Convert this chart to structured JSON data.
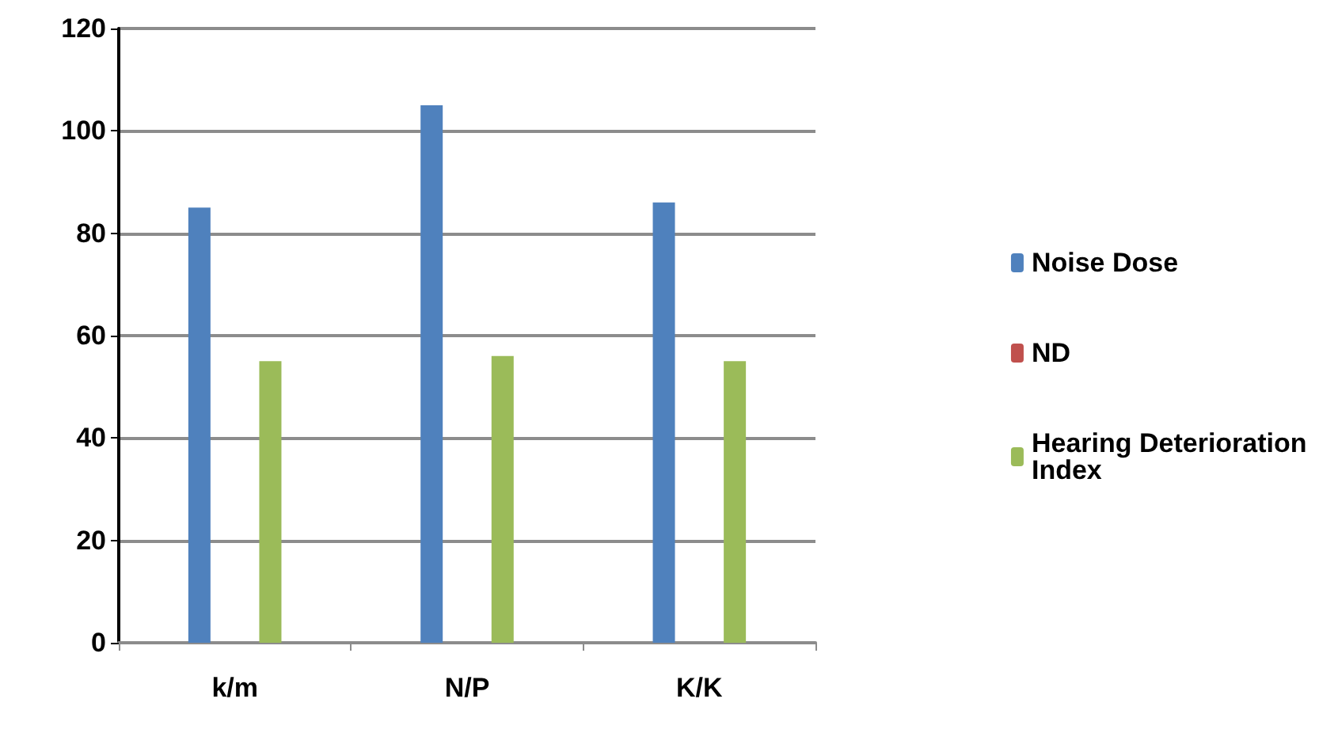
{
  "chart_data": {
    "type": "bar",
    "categories": [
      "k/m",
      "N/P",
      "K/K"
    ],
    "series": [
      {
        "name": "Noise Dose",
        "color": "#4f81bd",
        "values": [
          85,
          105,
          86
        ]
      },
      {
        "name": "ND",
        "color": "#c0504d",
        "values": [
          null,
          null,
          null
        ]
      },
      {
        "name": "Hearing Deterioration Index",
        "color": "#9bbb59",
        "values": [
          55,
          56,
          55
        ]
      }
    ],
    "ylim": [
      0,
      120
    ],
    "yticks": [
      0,
      20,
      40,
      60,
      80,
      100,
      120
    ],
    "grid": "y",
    "legend": "right"
  }
}
